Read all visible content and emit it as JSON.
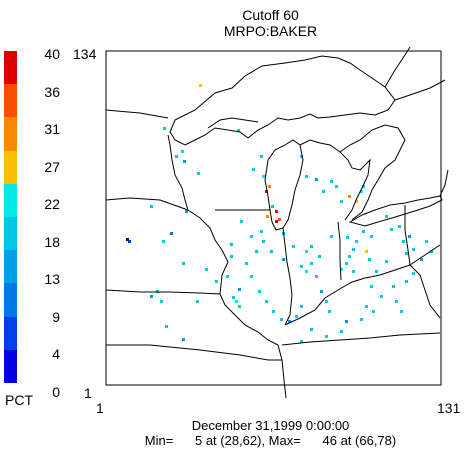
{
  "title": {
    "line1": "Cutoff 60",
    "line2": "MRPO:BAKER"
  },
  "colorbar": {
    "unit_label": "PCT",
    "tick_labels": [
      "40",
      "36",
      "31",
      "27",
      "22",
      "18",
      "13",
      "9",
      "4",
      "0"
    ],
    "colors": [
      "#e00000",
      "#f85000",
      "#f88800",
      "#f8c000",
      "#00e8e8",
      "#00c8e8",
      "#00a0e8",
      "#0078e8",
      "#0040e8",
      "#0000e0"
    ]
  },
  "axes": {
    "y_top": "134",
    "y_bottom": "1",
    "x_left": "1",
    "x_right": "131"
  },
  "footer": {
    "date": "December 31,1999 0:00:00",
    "minmax": "Min=      5 at (28,62), Max=      46 at (66,78)"
  },
  "map": {
    "region": "Upper Midwest, Great Lakes",
    "grid_x": [
      1,
      131
    ],
    "grid_y": [
      1,
      134
    ],
    "colors": {
      "boundaries": "#000000",
      "frame": "#000000"
    }
  }
}
